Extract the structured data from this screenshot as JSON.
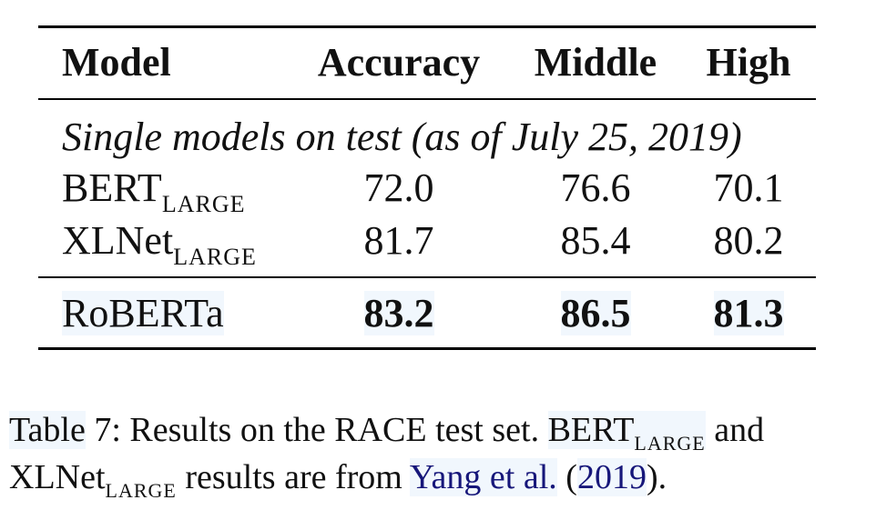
{
  "table": {
    "headers": [
      "Model",
      "Accuracy",
      "Middle",
      "High"
    ],
    "section_label": "Single models on test (as of July 25, 2019)",
    "rows": [
      {
        "model": "BERT",
        "model_sub": "LARGE",
        "accuracy": "72.0",
        "middle": "76.6",
        "high": "70.1"
      },
      {
        "model": "XLNet",
        "model_sub": "LARGE",
        "accuracy": "81.7",
        "middle": "85.4",
        "high": "80.2"
      }
    ],
    "final_row": {
      "model": "RoBERTa",
      "accuracy": "83.2",
      "middle": "86.5",
      "high": "81.3"
    }
  },
  "caption": {
    "label": "Table",
    "number": "7",
    "text1": ": Results on the RACE test set.",
    "bert": "BERT",
    "bert_sub": "LARGE",
    "and": "and",
    "xlnet": "XLNet",
    "xlnet_sub": "LARGE",
    "text2": "results are from",
    "cite_author": "Yang et al.",
    "cite_open": "(",
    "cite_year": "2019",
    "cite_close": ")."
  }
}
